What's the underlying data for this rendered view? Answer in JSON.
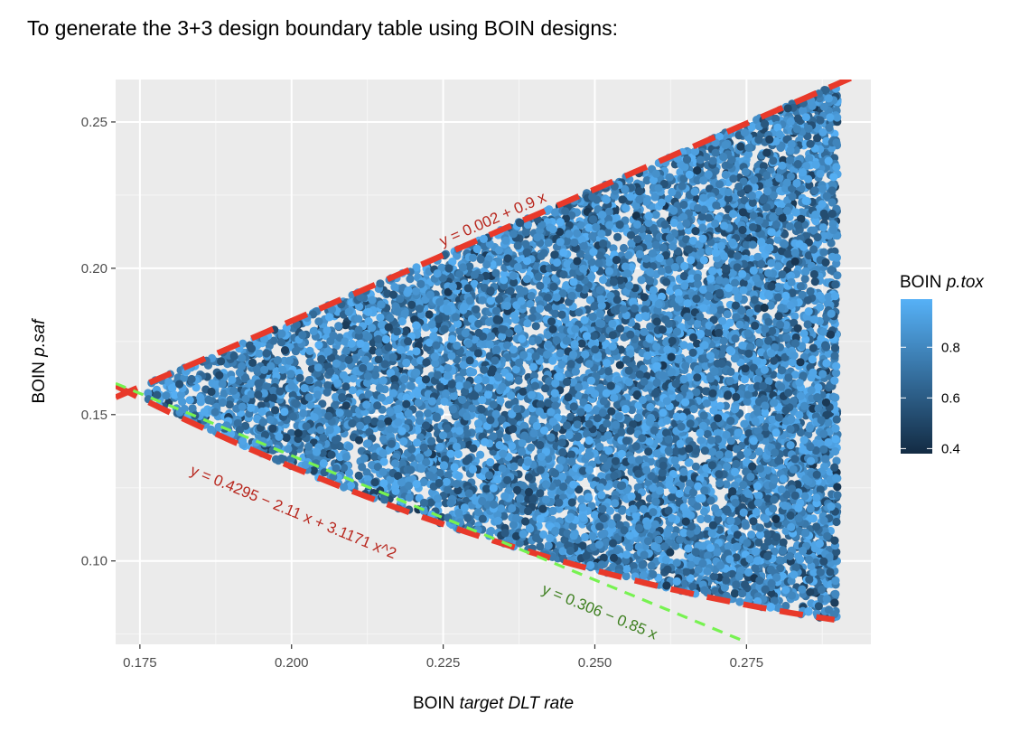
{
  "page": {
    "title": "To generate the 3+3 design boundary table using BOIN designs:"
  },
  "chart_data": {
    "type": "scatter",
    "title": "",
    "xlabel": {
      "plain": "BOIN ",
      "italic": "target DLT rate"
    },
    "ylabel": {
      "plain": "BOIN ",
      "italic": "p.saf"
    },
    "xlim": [
      0.171,
      0.2955
    ],
    "ylim": [
      0.0715,
      0.2645
    ],
    "x_ticks": [
      0.175,
      0.2,
      0.225,
      0.25,
      0.275
    ],
    "x_tick_labels": [
      "0.175",
      "0.200",
      "0.225",
      "0.250",
      "0.275"
    ],
    "y_ticks": [
      0.1,
      0.15,
      0.2,
      0.25
    ],
    "y_tick_labels": [
      "0.10",
      "0.15",
      "0.20",
      "0.25"
    ],
    "grid": true,
    "panel_background": "#ebebeb",
    "color_scale": {
      "variable": {
        "plain": "BOIN ",
        "italic": "p.tox"
      },
      "range": [
        0.38,
        0.99
      ],
      "ticks": [
        0.4,
        0.6,
        0.8
      ],
      "tick_labels": [
        "0.4",
        "0.6",
        "0.8"
      ],
      "low_color": "#132b43",
      "high_color": "#56b1f7",
      "legend_position": "right"
    },
    "point_region": {
      "description_x_range": [
        0.175,
        0.29
      ],
      "upper_bound": "y = 0.002 + 0.9 x",
      "lower_bound": "y = 0.4295 - 2.11 x + 3.1171 x^2",
      "n_points_approx": 9000
    },
    "lines": [
      {
        "label": "y = 0.002 + 0.9 x",
        "intercept": 0.002,
        "b1": 0.9,
        "b2": 0,
        "x_range": [
          0.171,
          0.2955
        ],
        "color": "#e8392a",
        "style": "long-dash",
        "label_at_x": 0.2335
      },
      {
        "label": "y = 0.4295 − 2.11 x + 3.1171 x^2",
        "intercept": 0.4295,
        "b1": -2.11,
        "b2": 3.1171,
        "x_range": [
          0.171,
          0.2895
        ],
        "color": "#e8392a",
        "style": "long-dash",
        "label_at_x": 0.2,
        "label_offset": 0.017
      },
      {
        "label": "y = 0.306 − 0.85 x",
        "intercept": 0.306,
        "b1": -0.85,
        "b2": 0,
        "x_range": [
          0.171,
          0.2745
        ],
        "color": "#77f251",
        "style": "short-dash",
        "label_at_x": 0.2505,
        "label_offset": 0.012
      }
    ],
    "annotation_colors": {
      "red_text": "#b8271e",
      "green_text": "#3d7f1f"
    }
  }
}
